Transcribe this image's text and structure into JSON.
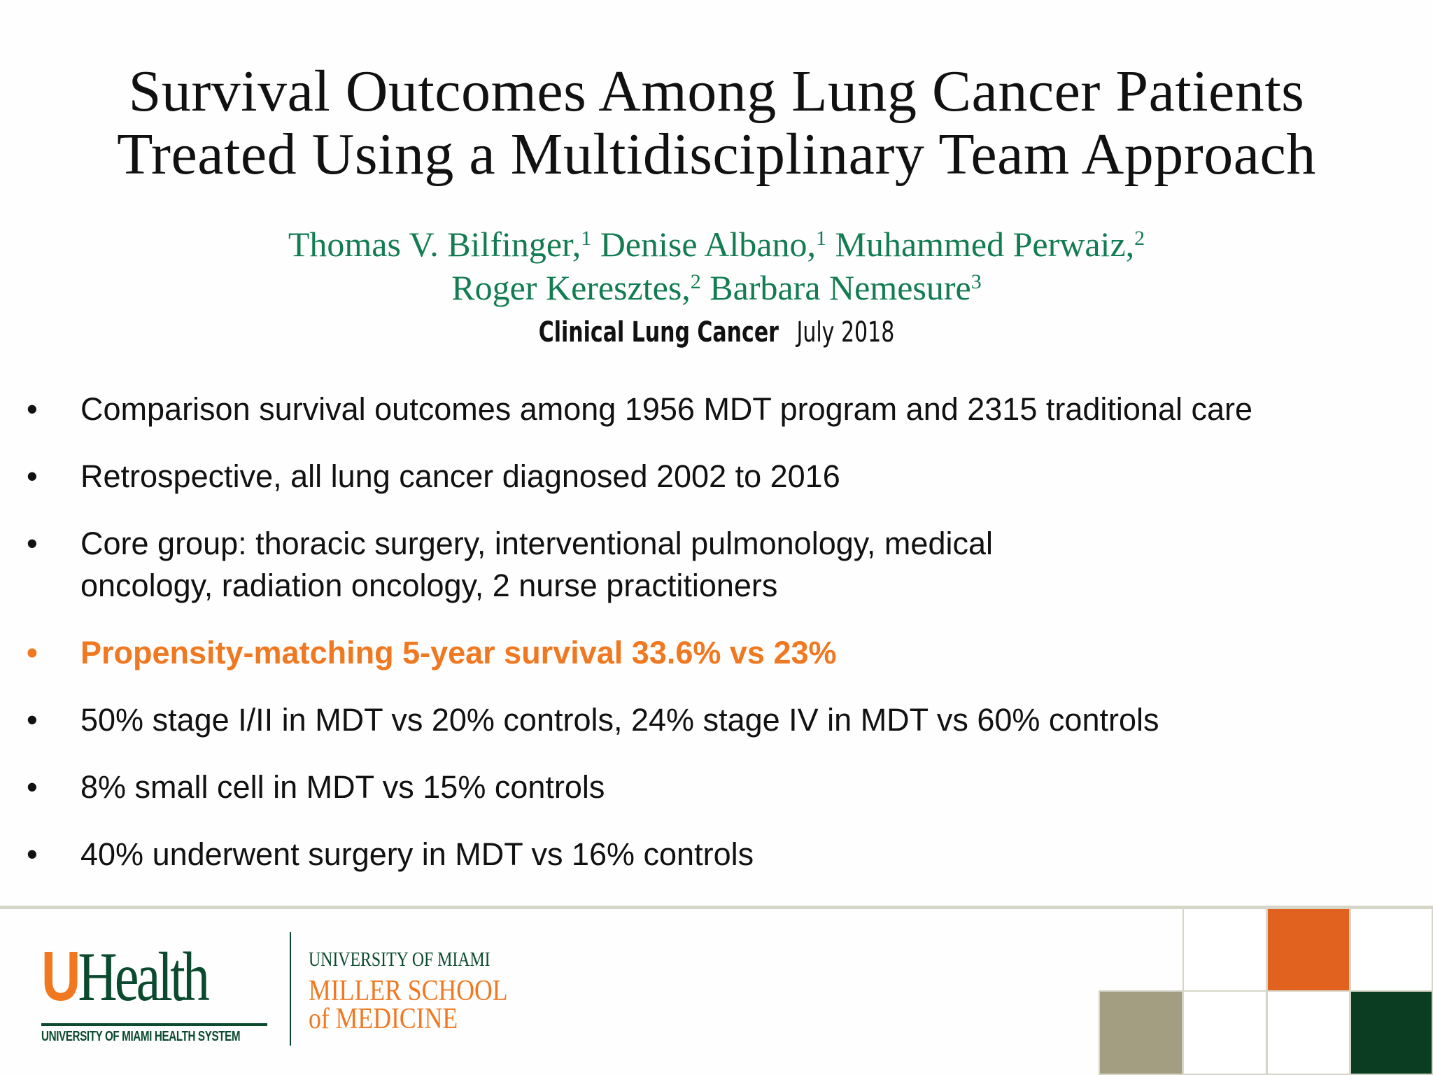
{
  "title": {
    "line1": "Survival Outcomes Among Lung Cancer Patients",
    "line2": "Treated Using a Multidisciplinary Team Approach"
  },
  "authors": [
    {
      "name": "Thomas V. Bilfinger,",
      "sup": "1"
    },
    {
      "name": "Denise Albano,",
      "sup": "1"
    },
    {
      "name": "Muhammed Perwaiz,",
      "sup": "2"
    },
    {
      "name": "Roger Keresztes,",
      "sup": "2"
    },
    {
      "name": "Barbara Nemesure",
      "sup": "3"
    }
  ],
  "journal": {
    "name": "Clinical Lung Cancer",
    "date": "July 2018"
  },
  "bullets": [
    {
      "text": "Comparison survival outcomes among 1956 MDT program and 2315 traditional care"
    },
    {
      "text": "Retrospective, all lung cancer diagnosed 2002 to 2016"
    },
    {
      "text": "Core group:  thoracic surgery, interventional pulmonology, medical oncology, radiation oncology, 2 nurse practitioners"
    },
    {
      "text": "Propensity-matching 5-year survival 33.6% vs 23%",
      "highlight": true
    },
    {
      "text": "50% stage I/II in MDT vs 20% controls, 24% stage IV in MDT vs 60% controls"
    },
    {
      "text": "8% small cell in MDT vs 15% controls"
    },
    {
      "text": "40% underwent surgery in MDT vs 16% controls"
    }
  ],
  "bullet_char": "•",
  "footer": {
    "uhealth_u": "U",
    "uhealth_rest": "Health",
    "uhealth_sub": "UNIVERSITY OF MIAMI HEALTH SYSTEM",
    "school_line1": "UNIVERSITY OF MIAMI",
    "school_line2": "MILLER SCHOOL",
    "school_line3": "of MEDICINE"
  },
  "colors": {
    "orange": "#e0621e",
    "green": "#0b3d22",
    "tan": "#a39d82",
    "author_green": "#137c52",
    "highlight": "#f07820"
  }
}
